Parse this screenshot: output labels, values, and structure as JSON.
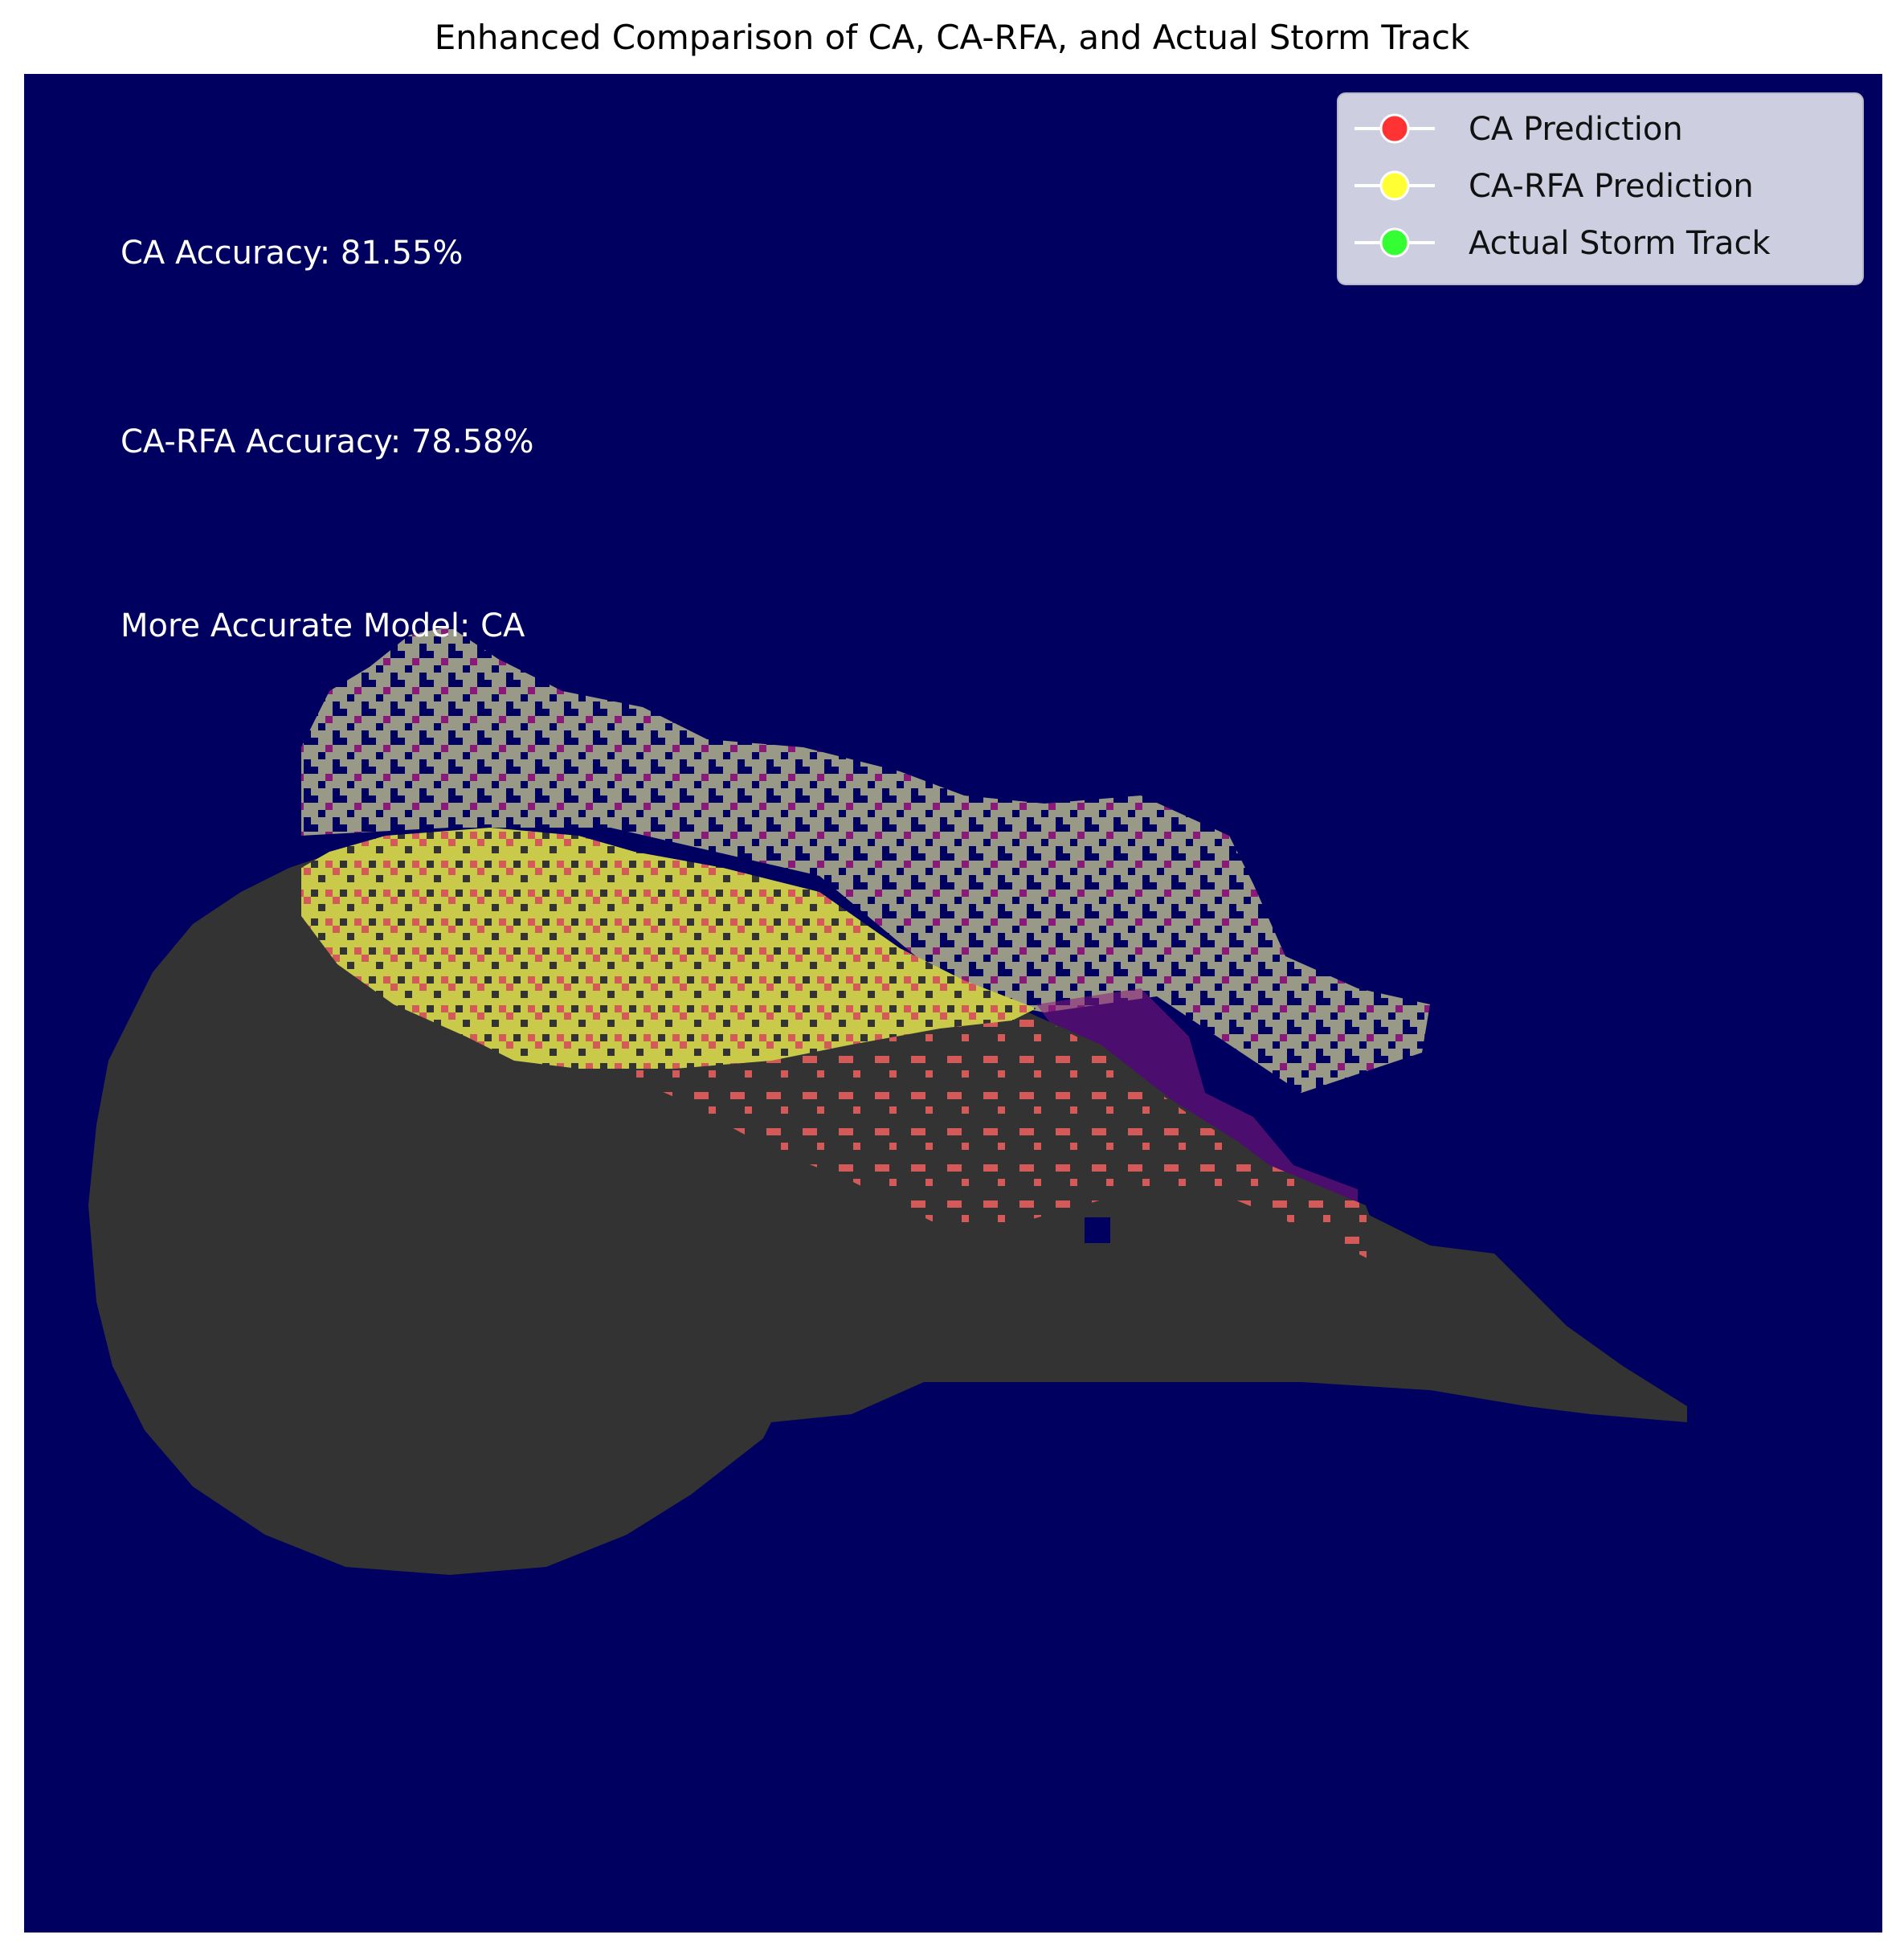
{
  "chart_data": {
    "type": "heatmap",
    "title": "Enhanced Comparison of CA, CA-RFA, and Actual Storm Track",
    "xlabel": "",
    "ylabel": "",
    "grid": false,
    "axes_visible": false,
    "legend_placement": "top-right",
    "background_color": "#000060",
    "legend": [
      {
        "name": "CA Prediction",
        "color": "#ff3333"
      },
      {
        "name": "CA-RFA Prediction",
        "color": "#ffff33"
      },
      {
        "name": "Actual Storm Track",
        "color": "#33ff33"
      }
    ],
    "annotations": [
      {
        "label": "CA Accuracy",
        "value": "81.55%"
      },
      {
        "label": "CA-RFA Accuracy",
        "value": "78.58%"
      },
      {
        "label": "More Accurate Model",
        "value": "CA"
      }
    ],
    "region_colors": {
      "actual_track_overlap": "#333333",
      "ca_only": "#d45a5a",
      "ca_rfa_only": "#c9c94a",
      "storm_noise": "#999988",
      "storm_noise_mixed": "#8a1a7a"
    }
  }
}
